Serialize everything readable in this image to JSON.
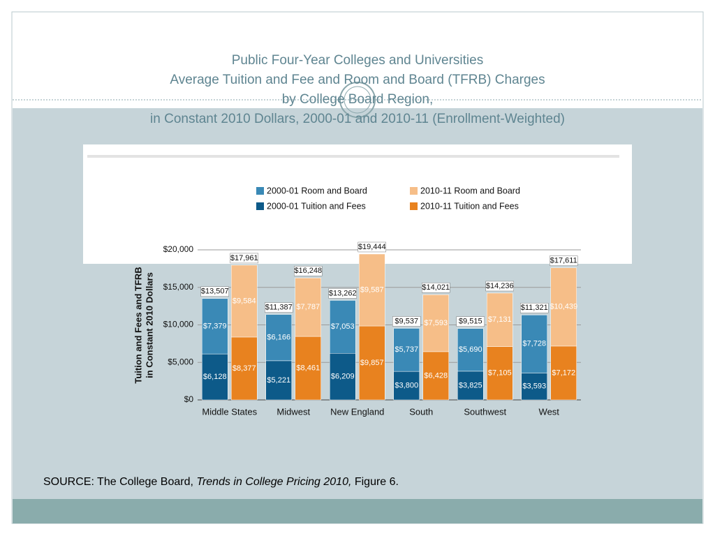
{
  "title_lines": [
    "Public Four-Year Colleges and Universities",
    "Average Tuition and Fee and Room and Board (TFRB) Charges",
    "by College Board Region,",
    "in Constant 2010 Dollars, 2000-01 and 2010-11 (Enrollment-Weighted)"
  ],
  "source": {
    "prefix": "SOURCE: The College Board, ",
    "italic": "Trends in College Pricing 2010,",
    "suffix": " Figure 6."
  },
  "chart_data": {
    "type": "stacked_grouped_bar",
    "ylabel_lines": [
      "Tuition and Fees and TFRB",
      "in Constant 2010 Dollars"
    ],
    "categories": [
      "Middle States",
      "Midwest",
      "New England",
      "South",
      "Southwest",
      "West"
    ],
    "ylim": [
      0,
      20000
    ],
    "yticks": [
      {
        "value": 0,
        "label": "$0"
      },
      {
        "value": 5000,
        "label": "$5,000"
      },
      {
        "value": 10000,
        "label": "$10,000"
      },
      {
        "value": 15000,
        "label": "$15,000"
      },
      {
        "value": 20000,
        "label": "$20,000"
      }
    ],
    "grid": true,
    "series": [
      {
        "name": "2000-01 Tuition and Fees",
        "stack": 0,
        "color": "#0d5a89",
        "values": [
          6128,
          5221,
          6209,
          3800,
          3825,
          3593
        ],
        "value_labels": [
          "$6,128",
          "$5,221",
          "$6,209",
          "$3,800",
          "$3,825",
          "$3,593"
        ]
      },
      {
        "name": "2000-01 Room and Board",
        "stack": 0,
        "color": "#3a89b6",
        "values": [
          7379,
          6166,
          7053,
          5737,
          5690,
          7728
        ],
        "value_labels": [
          "$7,379",
          "$6,166",
          "$7,053",
          "$5,737",
          "$5,690",
          "$7,728"
        ]
      },
      {
        "name": "2010-11 Tuition and Fees",
        "stack": 1,
        "color": "#e8821f",
        "values": [
          8377,
          8461,
          9857,
          6428,
          7105,
          7172
        ],
        "value_labels": [
          "$8,377",
          "$8,461",
          "$9,857",
          "$6,428",
          "$7,105",
          "$7,172"
        ]
      },
      {
        "name": "2010-11 Room and Board",
        "stack": 1,
        "color": "#f6be88",
        "values": [
          9584,
          7787,
          9587,
          7593,
          7131,
          10439
        ],
        "value_labels": [
          "$9,584",
          "$7,787",
          "$9,587",
          "$7,593",
          "$7,131",
          "$10,439"
        ]
      }
    ],
    "totals": [
      {
        "values": [
          13507,
          11387,
          13262,
          9537,
          9515,
          11321
        ],
        "value_labels": [
          "$13,507",
          "$11,387",
          "$13,262",
          "$9,537",
          "$9,515",
          "$11,321"
        ]
      },
      {
        "values": [
          17961,
          16248,
          19444,
          14021,
          14236,
          17611
        ],
        "value_labels": [
          "$17,961",
          "$16,248",
          "$19,444",
          "$14,021",
          "$14,236",
          "$17,611"
        ]
      }
    ]
  }
}
